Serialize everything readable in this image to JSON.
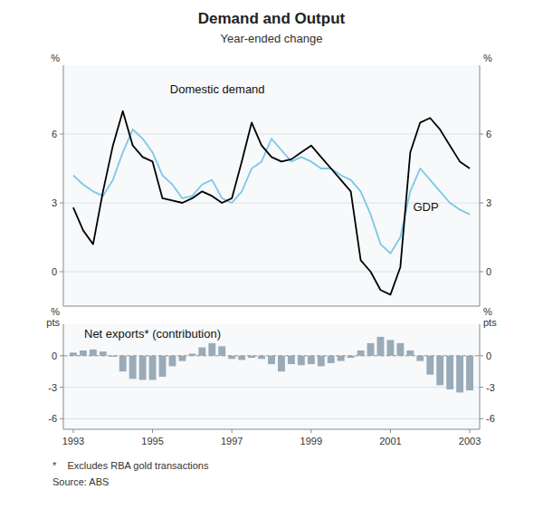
{
  "chart_data": [
    {
      "type": "line",
      "title": "Demand and Output",
      "subtitle": "Year-ended change",
      "xlim": [
        1992.75,
        2003.25
      ],
      "ylim": [
        -1.5,
        9
      ],
      "yticks": [
        0,
        3,
        6
      ],
      "ylabel": "%",
      "y2lim": [
        -1.5,
        9
      ],
      "y2ticks": [
        0,
        3,
        6
      ],
      "y2label": "%",
      "grid": true,
      "tick_labels": "y",
      "x": [
        1993.0,
        1993.25,
        1993.5,
        1993.75,
        1994.0,
        1994.25,
        1994.5,
        1994.75,
        1995.0,
        1995.25,
        1995.5,
        1995.75,
        1996.0,
        1996.25,
        1996.5,
        1996.75,
        1997.0,
        1997.25,
        1997.5,
        1997.75,
        1998.0,
        1998.25,
        1998.5,
        1998.75,
        1999.0,
        1999.25,
        1999.5,
        1999.75,
        2000.0,
        2000.25,
        2000.5,
        2000.75,
        2001.0,
        2001.25,
        2001.5,
        2001.75,
        2002.0,
        2002.25,
        2002.5,
        2002.75,
        2003.0
      ],
      "series": [
        {
          "name": "Domestic demand",
          "color": "#7bc8e8",
          "values": [
            4.2,
            3.8,
            3.5,
            3.3,
            4.0,
            5.2,
            6.2,
            5.8,
            5.2,
            4.2,
            3.8,
            3.2,
            3.3,
            3.8,
            4.0,
            3.2,
            3.0,
            3.5,
            4.5,
            4.8,
            5.8,
            5.3,
            4.8,
            5.0,
            4.8,
            4.5,
            4.5,
            4.2,
            4.0,
            3.5,
            2.5,
            1.2,
            0.8,
            1.5,
            3.5,
            4.5,
            4.0,
            3.5,
            3.0,
            2.7,
            2.5
          ]
        },
        {
          "name": "GDP",
          "color": "#000000",
          "values": [
            2.8,
            1.8,
            1.2,
            3.5,
            5.5,
            7.0,
            5.5,
            5.0,
            4.8,
            3.2,
            3.1,
            3.0,
            3.2,
            3.5,
            3.3,
            3.0,
            3.2,
            4.8,
            6.5,
            5.5,
            5.0,
            4.8,
            4.9,
            5.2,
            5.5,
            5.0,
            4.5,
            4.0,
            3.5,
            0.5,
            0.0,
            -0.8,
            -1.0,
            0.2,
            5.2,
            6.5,
            6.7,
            6.2,
            5.5,
            4.8,
            4.5
          ]
        }
      ]
    },
    {
      "type": "bar",
      "xlim": [
        1992.75,
        2003.25
      ],
      "xticks": [
        1993,
        1995,
        1997,
        1999,
        2001,
        2003
      ],
      "ylim": [
        -7,
        3
      ],
      "yticks": [
        -6,
        -3,
        0
      ],
      "ylabel": "%\npts",
      "y2lim": [
        -7,
        3
      ],
      "y2ticks": [
        -6,
        -3,
        0
      ],
      "y2label": "%\npts",
      "grid": true,
      "x": [
        1993.0,
        1993.25,
        1993.5,
        1993.75,
        1994.0,
        1994.25,
        1994.5,
        1994.75,
        1995.0,
        1995.25,
        1995.5,
        1995.75,
        1996.0,
        1996.25,
        1996.5,
        1996.75,
        1997.0,
        1997.25,
        1997.5,
        1997.75,
        1998.0,
        1998.25,
        1998.5,
        1998.75,
        1999.0,
        1999.25,
        1999.5,
        1999.75,
        2000.0,
        2000.25,
        2000.5,
        2000.75,
        2001.0,
        2001.25,
        2001.5,
        2001.75,
        2002.0,
        2002.25,
        2002.5,
        2002.75,
        2003.0
      ],
      "series": [
        {
          "name": "Net exports* (contribution)",
          "color": "#9aabb8",
          "values": [
            0.3,
            0.5,
            0.6,
            0.4,
            -0.1,
            -1.5,
            -2.2,
            -2.3,
            -2.3,
            -2.0,
            -1.0,
            -0.5,
            0.2,
            0.8,
            1.2,
            0.9,
            -0.3,
            -0.4,
            -0.2,
            -0.3,
            -0.8,
            -1.5,
            -0.8,
            -0.9,
            -0.8,
            -1.0,
            -0.7,
            -0.5,
            -0.2,
            0.5,
            1.2,
            1.8,
            1.5,
            1.2,
            0.5,
            -0.5,
            -1.8,
            -2.8,
            -3.2,
            -3.5,
            -3.3
          ]
        }
      ],
      "footnotes": [
        "*    Excludes RBA gold transactions",
        "Source: ABS"
      ]
    }
  ]
}
